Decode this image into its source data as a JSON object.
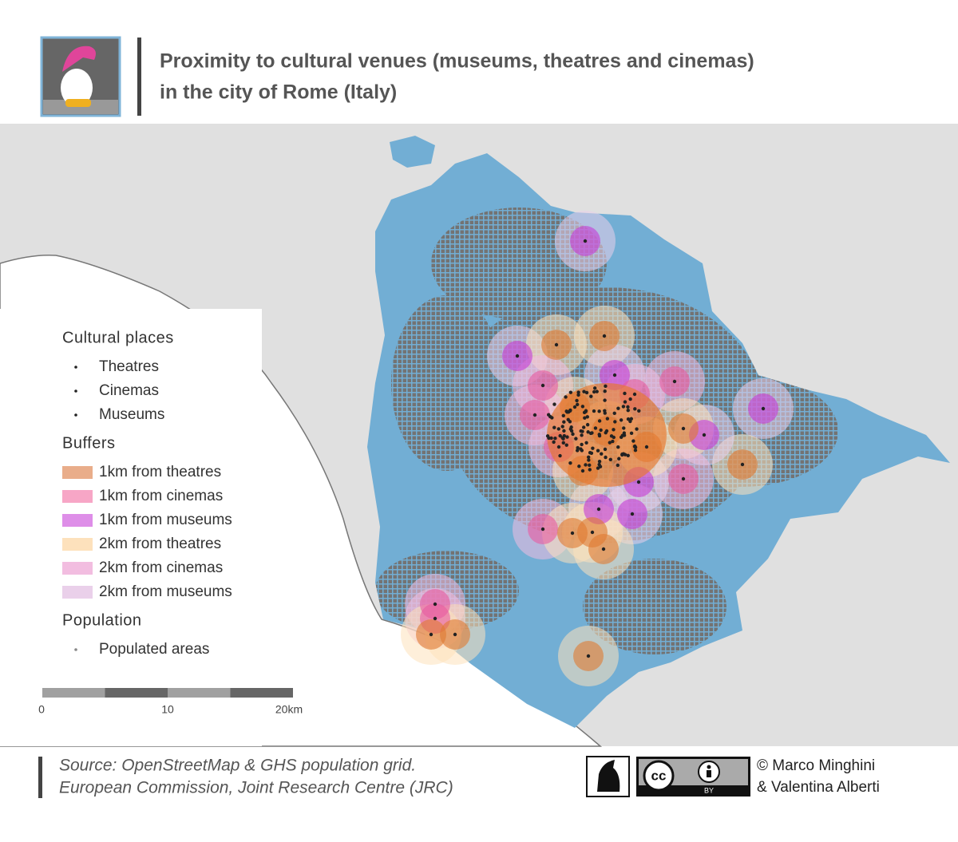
{
  "header": {
    "title": [
      "Proximity to cultural venues (museums, theatres and cinemas)",
      "in the city of Rome (Italy)"
    ]
  },
  "legend": {
    "sections": [
      {
        "title": "Cultural places",
        "items": [
          {
            "label": "Theatres",
            "color": "#222222"
          },
          {
            "label": "Cinemas",
            "color": "#222222"
          },
          {
            "label": "Museums",
            "color": "#222222"
          }
        ]
      },
      {
        "title": "Buffers",
        "items": [
          {
            "label": "1km from theatres",
            "color": "#e9ad8a"
          },
          {
            "label": "1km from cinemas",
            "color": "#f7a6c6"
          },
          {
            "label": "1km from museums",
            "color": "#de8ee8"
          },
          {
            "label": "2km from theatres",
            "color": "#fde1bc"
          },
          {
            "label": "2km from cinemas",
            "color": "#f2bde0"
          },
          {
            "label": "2km from museums",
            "color": "#ead0ea"
          }
        ]
      },
      {
        "title": "Population",
        "items": [
          {
            "label": "Populated areas",
            "color": "#888888"
          }
        ]
      }
    ]
  },
  "scale_bar": {
    "labels": [
      "0",
      "10",
      "20km"
    ]
  },
  "source": [
    "Source: OpenStreetMap & GHS population grid.",
    "European Commission, Joint Research Centre (JRC)"
  ],
  "license": {
    "mark": "cc",
    "label": "BY"
  },
  "credits": [
    "© Marco Minghini",
    "& Valentina Alberti"
  ]
}
